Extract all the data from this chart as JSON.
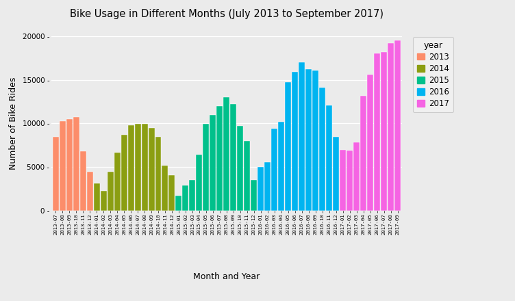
{
  "title": "Bike Usage in Different Months (July 2013 to September 2017)",
  "xlabel": "Month and Year",
  "ylabel": "Number of Bike Rides",
  "ylim": [
    0,
    20000
  ],
  "yticks": [
    0,
    5000,
    10000,
    15000,
    20000
  ],
  "ytick_labels": [
    "0",
    "5000",
    "10000",
    "15000",
    "20000"
  ],
  "background_color": "#EBEBEB",
  "grid_color": "#FFFFFF",
  "colors": {
    "2013": "#FC8D6A",
    "2014": "#8B9E12",
    "2015": "#00C08B",
    "2016": "#00B4F0",
    "2017": "#F564E3"
  },
  "bars": [
    {
      "label": "2013-07",
      "year": "2013",
      "value": 8500
    },
    {
      "label": "2013-08",
      "year": "2013",
      "value": 10300
    },
    {
      "label": "2013-09",
      "year": "2013",
      "value": 10500
    },
    {
      "label": "2013-10",
      "year": "2013",
      "value": 10700
    },
    {
      "label": "2013-11",
      "year": "2013",
      "value": 6800
    },
    {
      "label": "2013-12",
      "year": "2013",
      "value": 4500
    },
    {
      "label": "2014-01",
      "year": "2014",
      "value": 3100
    },
    {
      "label": "2014-02",
      "year": "2014",
      "value": 2300
    },
    {
      "label": "2014-03",
      "year": "2014",
      "value": 4500
    },
    {
      "label": "2014-04",
      "year": "2014",
      "value": 6700
    },
    {
      "label": "2014-05",
      "year": "2014",
      "value": 8700
    },
    {
      "label": "2014-06",
      "year": "2014",
      "value": 9800
    },
    {
      "label": "2014-07",
      "year": "2014",
      "value": 9950
    },
    {
      "label": "2014-08",
      "year": "2014",
      "value": 9950
    },
    {
      "label": "2014-09",
      "year": "2014",
      "value": 9500
    },
    {
      "label": "2014-10",
      "year": "2014",
      "value": 8500
    },
    {
      "label": "2014-11",
      "year": "2014",
      "value": 5200
    },
    {
      "label": "2014-12",
      "year": "2014",
      "value": 4100
    },
    {
      "label": "2015-01",
      "year": "2015",
      "value": 1700
    },
    {
      "label": "2015-02",
      "year": "2015",
      "value": 2900
    },
    {
      "label": "2015-03",
      "year": "2015",
      "value": 3500
    },
    {
      "label": "2015-04",
      "year": "2015",
      "value": 6400
    },
    {
      "label": "2015-05",
      "year": "2015",
      "value": 9950
    },
    {
      "label": "2015-06",
      "year": "2015",
      "value": 10950
    },
    {
      "label": "2015-07",
      "year": "2015",
      "value": 12000
    },
    {
      "label": "2015-08",
      "year": "2015",
      "value": 13000
    },
    {
      "label": "2015-09",
      "year": "2015",
      "value": 12200
    },
    {
      "label": "2015-10",
      "year": "2015",
      "value": 9700
    },
    {
      "label": "2015-11",
      "year": "2015",
      "value": 8000
    },
    {
      "label": "2015-12",
      "year": "2015",
      "value": 3500
    },
    {
      "label": "2016-01",
      "year": "2016",
      "value": 5000
    },
    {
      "label": "2016-02",
      "year": "2016",
      "value": 5600
    },
    {
      "label": "2016-03",
      "year": "2016",
      "value": 9400
    },
    {
      "label": "2016-04",
      "year": "2016",
      "value": 10200
    },
    {
      "label": "2016-05",
      "year": "2016",
      "value": 14700
    },
    {
      "label": "2016-06",
      "year": "2016",
      "value": 15900
    },
    {
      "label": "2016-07",
      "year": "2016",
      "value": 17000
    },
    {
      "label": "2016-08",
      "year": "2016",
      "value": 16200
    },
    {
      "label": "2016-09",
      "year": "2016",
      "value": 16100
    },
    {
      "label": "2016-10",
      "year": "2016",
      "value": 14100
    },
    {
      "label": "2016-11",
      "year": "2016",
      "value": 12100
    },
    {
      "label": "2016-12",
      "year": "2016",
      "value": 8500
    },
    {
      "label": "2017-01",
      "year": "2017",
      "value": 7000
    },
    {
      "label": "2017-02",
      "year": "2017",
      "value": 6900
    },
    {
      "label": "2017-03",
      "year": "2017",
      "value": 7800
    },
    {
      "label": "2017-04",
      "year": "2017",
      "value": 13200
    },
    {
      "label": "2017-05",
      "year": "2017",
      "value": 15600
    },
    {
      "label": "2017-06",
      "year": "2017",
      "value": 18000
    },
    {
      "label": "2017-07",
      "year": "2017",
      "value": 18200
    },
    {
      "label": "2017-08",
      "year": "2017",
      "value": 19200
    },
    {
      "label": "2017-09",
      "year": "2017",
      "value": 19500
    }
  ],
  "legend_years": [
    "2013",
    "2014",
    "2015",
    "2016",
    "2017"
  ],
  "fig_width": 7.52,
  "fig_height": 4.4,
  "dpi": 100
}
